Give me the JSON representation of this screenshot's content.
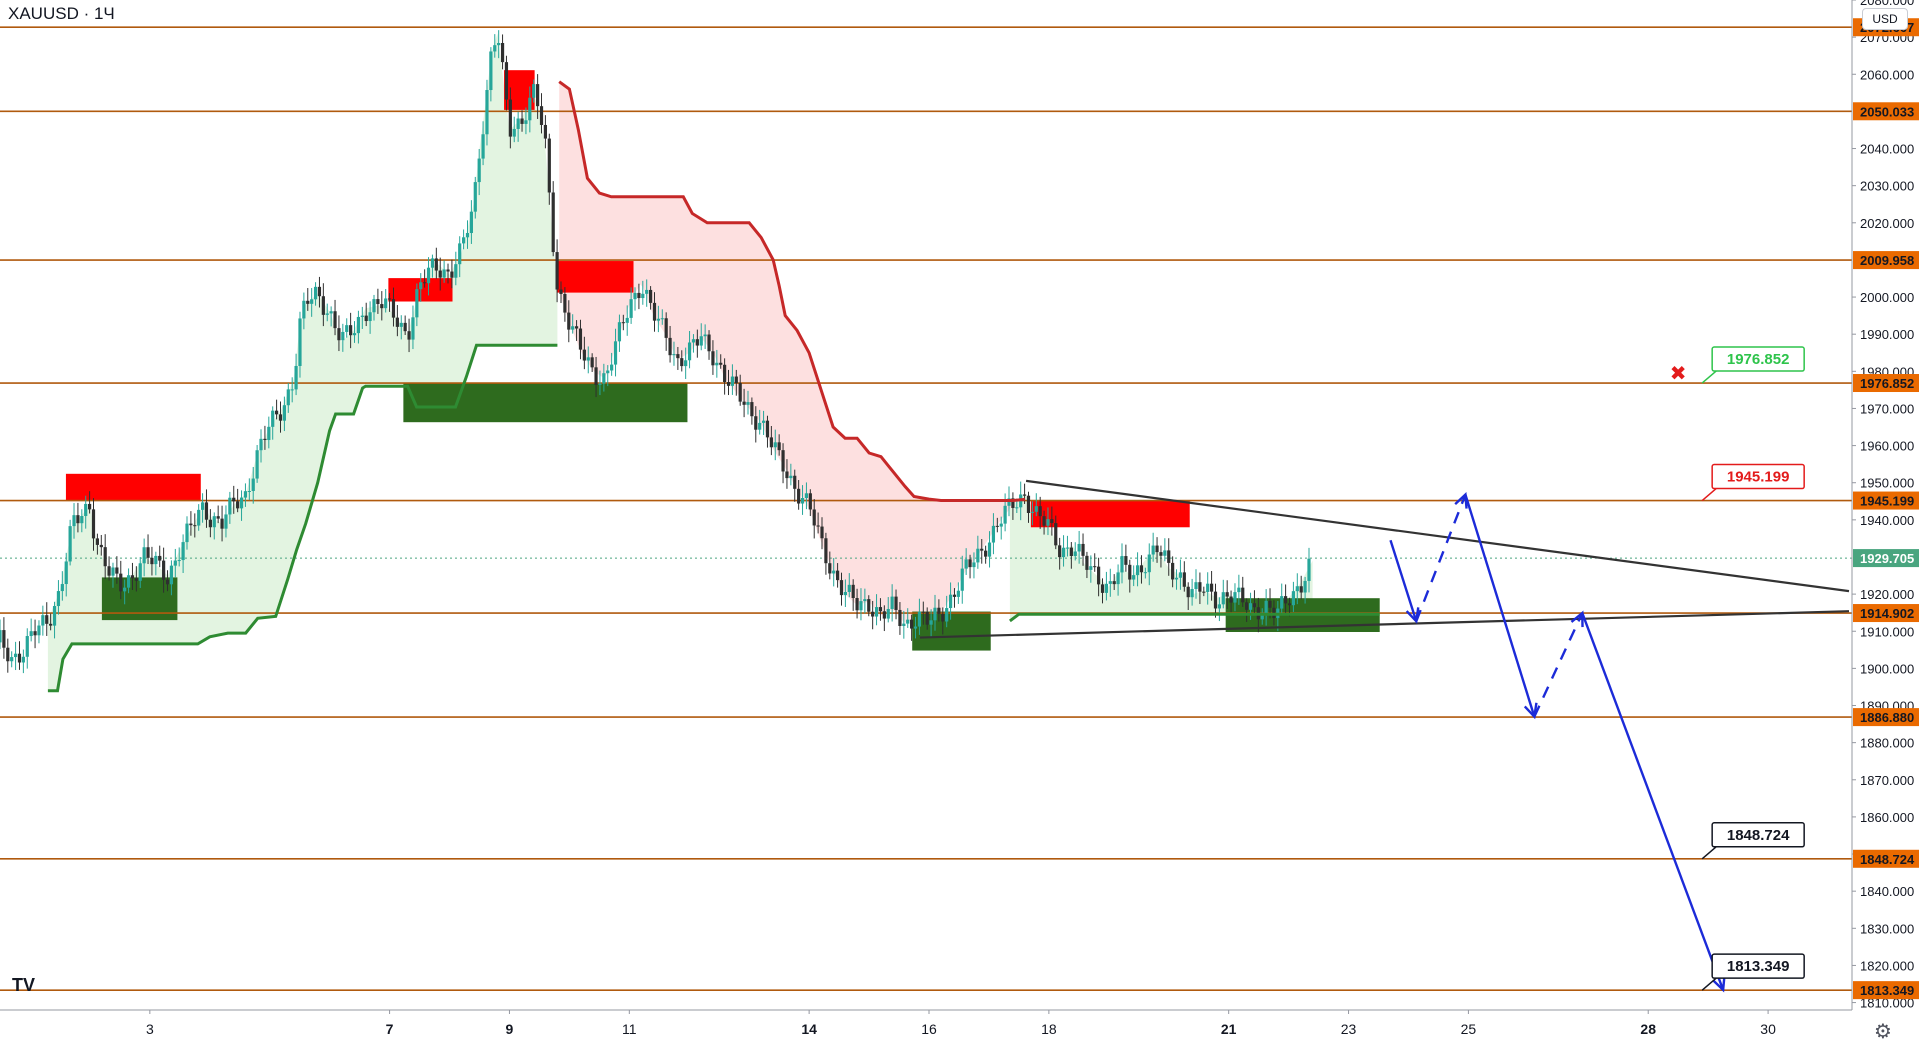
{
  "symbol_label": "XAUUSD · 1Ч",
  "currency_button": "USD",
  "logo_text": "TV",
  "settings_icon": "gear-icon",
  "colors": {
    "level_line": "#b05a0e",
    "supply_zone": "#ff0000",
    "demand_zone": "#2e6b1e",
    "trail_up": "#2e8b32",
    "trail_down": "#c62828",
    "fill_up": "#e3f4e1",
    "fill_down": "#fde0e0",
    "candle_up": "#26a69a",
    "candle_down": "#2f2f2f",
    "projection": "#1c2bd8",
    "triangle": "#333333",
    "price_tag_bg": "#ea6a00",
    "current_price_bg": "#49a57f",
    "callout_green": "#2ec44b",
    "callout_red": "#e31b1b",
    "callout_black": "#131722"
  },
  "chart_data": {
    "type": "candlestick",
    "instrument": "XAUUSD",
    "timeframe": "1Ч",
    "ylim": [
      1808,
      2080
    ],
    "y_ticks": [
      2080,
      2070,
      2060,
      2040,
      2030,
      2020,
      2000,
      1990,
      1980,
      1970,
      1960,
      1950,
      1940,
      1920,
      1910,
      1900,
      1890,
      1880,
      1870,
      1860,
      1850,
      1840,
      1830,
      1820,
      1810
    ],
    "y_tick_labels": [
      "2080.000",
      "2070.000",
      "2060.000",
      "2040.000",
      "2030.000",
      "2020.000",
      "2000.000",
      "1990.000",
      "1980.000",
      "1970.000",
      "1960.000",
      "1950.000",
      "1940.000",
      "1920.000",
      "1910.000",
      "1900.000",
      "1890.000",
      "1880.000",
      "1870.000",
      "1860.000",
      "1850.000",
      "1840.000",
      "1830.000",
      "1820.000",
      "1810.000"
    ],
    "x_range": [
      0.5,
      31.4
    ],
    "x_ticks": [
      {
        "day": 3,
        "label": "3",
        "bold": false
      },
      {
        "day": 7,
        "label": "7",
        "bold": true
      },
      {
        "day": 9,
        "label": "9",
        "bold": true
      },
      {
        "day": 11,
        "label": "11",
        "bold": false
      },
      {
        "day": 14,
        "label": "14",
        "bold": true
      },
      {
        "day": 16,
        "label": "16",
        "bold": false
      },
      {
        "day": 18,
        "label": "18",
        "bold": false
      },
      {
        "day": 21,
        "label": "21",
        "bold": true
      },
      {
        "day": 23,
        "label": "23",
        "bold": false
      },
      {
        "day": 25,
        "label": "25",
        "bold": false
      },
      {
        "day": 28,
        "label": "28",
        "bold": true
      },
      {
        "day": 30,
        "label": "30",
        "bold": false
      }
    ],
    "levels": [
      {
        "price": 2072.667,
        "label": "2072.667"
      },
      {
        "price": 2050.033,
        "label": "2050.033"
      },
      {
        "price": 2009.958,
        "label": "2009.958"
      },
      {
        "price": 1976.852,
        "label": "1976.852"
      },
      {
        "price": 1945.199,
        "label": "1945.199"
      },
      {
        "price": 1914.902,
        "label": "1914.902"
      },
      {
        "price": 1886.88,
        "label": "1886.880"
      },
      {
        "price": 1848.724,
        "label": "1848.724"
      },
      {
        "price": 1813.349,
        "label": "1813.349"
      }
    ],
    "current_price": {
      "price": 1929.705,
      "label": "1929.705"
    },
    "supply_zones": [
      {
        "x0": 1.6,
        "x1": 3.85,
        "y0": 1945.3,
        "y1": 1952.4
      },
      {
        "x0": 6.98,
        "x1": 8.05,
        "y0": 1998.8,
        "y1": 2005.1
      },
      {
        "x0": 8.91,
        "x1": 9.42,
        "y0": 2050.4,
        "y1": 2061.1
      },
      {
        "x0": 9.79,
        "x1": 11.07,
        "y0": 2001.2,
        "y1": 2009.7
      },
      {
        "x0": 17.7,
        "x1": 20.35,
        "y0": 1938.0,
        "y1": 1945.3
      }
    ],
    "demand_zones": [
      {
        "x0": 2.2,
        "x1": 3.46,
        "y0": 1913.0,
        "y1": 1924.5
      },
      {
        "x0": 7.23,
        "x1": 11.97,
        "y0": 1966.3,
        "y1": 1976.8
      },
      {
        "x0": 15.72,
        "x1": 17.03,
        "y0": 1904.8,
        "y1": 1915.3
      },
      {
        "x0": 20.95,
        "x1": 23.52,
        "y0": 1909.8,
        "y1": 1918.9
      }
    ],
    "trailing_stop_up_1": [
      [
        1.3,
        1894
      ],
      [
        1.46,
        1894
      ],
      [
        1.55,
        1902.5
      ],
      [
        1.7,
        1906.6
      ],
      [
        3.8,
        1906.6
      ],
      [
        4.0,
        1908.5
      ],
      [
        4.3,
        1909.5
      ],
      [
        4.6,
        1909.5
      ],
      [
        4.8,
        1913.5
      ],
      [
        5.1,
        1914
      ],
      [
        5.3,
        1924
      ],
      [
        5.45,
        1932
      ],
      [
        5.6,
        1939
      ],
      [
        5.8,
        1950
      ],
      [
        6.0,
        1964
      ],
      [
        6.1,
        1968.5
      ],
      [
        6.4,
        1968.5
      ],
      [
        6.55,
        1975.5
      ],
      [
        6.6,
        1976
      ],
      [
        7.3,
        1976
      ],
      [
        7.45,
        1970.4
      ],
      [
        8.1,
        1970.4
      ],
      [
        8.28,
        1978.5
      ],
      [
        8.45,
        1987
      ],
      [
        9.8,
        1987
      ]
    ],
    "trailing_stop_down": [
      [
        9.83,
        2058
      ],
      [
        10.0,
        2056
      ],
      [
        10.15,
        2045
      ],
      [
        10.3,
        2032
      ],
      [
        10.5,
        2028
      ],
      [
        10.7,
        2027
      ],
      [
        11.9,
        2027
      ],
      [
        12.05,
        2022.5
      ],
      [
        12.3,
        2020
      ],
      [
        12.5,
        2020
      ],
      [
        13.0,
        2020
      ],
      [
        13.2,
        2016
      ],
      [
        13.4,
        2010
      ],
      [
        13.5,
        2003
      ],
      [
        13.6,
        1995
      ],
      [
        13.8,
        1991
      ],
      [
        14.0,
        1985
      ],
      [
        14.2,
        1975
      ],
      [
        14.4,
        1965
      ],
      [
        14.6,
        1962
      ],
      [
        14.8,
        1962
      ],
      [
        15.0,
        1958
      ],
      [
        15.2,
        1957
      ],
      [
        15.4,
        1953
      ],
      [
        15.6,
        1949
      ],
      [
        15.75,
        1946.3
      ],
      [
        16.0,
        1945.6
      ],
      [
        16.2,
        1945.2
      ],
      [
        17.4,
        1945.2
      ],
      [
        17.6,
        1945.5
      ]
    ],
    "trailing_stop_up_2": [
      [
        17.35,
        1912.8
      ],
      [
        17.5,
        1914.6
      ],
      [
        23.52,
        1914.6
      ]
    ],
    "price_path": [
      [
        0.5,
        1907
      ],
      [
        0.7,
        1903
      ],
      [
        0.9,
        1905
      ],
      [
        1.1,
        1910
      ],
      [
        1.3,
        1913
      ],
      [
        1.5,
        1921
      ],
      [
        1.7,
        1938
      ],
      [
        1.9,
        1942
      ],
      [
        2.0,
        1944
      ],
      [
        2.1,
        1935
      ],
      [
        2.3,
        1926
      ],
      [
        2.5,
        1922
      ],
      [
        2.7,
        1925
      ],
      [
        2.9,
        1930
      ],
      [
        3.1,
        1928
      ],
      [
        3.3,
        1925
      ],
      [
        3.5,
        1932
      ],
      [
        3.7,
        1938
      ],
      [
        3.9,
        1944
      ],
      [
        4.0,
        1941
      ],
      [
        4.2,
        1939
      ],
      [
        4.4,
        1944
      ],
      [
        4.6,
        1947
      ],
      [
        4.8,
        1958
      ],
      [
        5.0,
        1965
      ],
      [
        5.2,
        1970
      ],
      [
        5.4,
        1978
      ],
      [
        5.5,
        1992
      ],
      [
        5.6,
        1998
      ],
      [
        5.8,
        2001
      ],
      [
        6.0,
        1996
      ],
      [
        6.2,
        1988
      ],
      [
        6.4,
        1991
      ],
      [
        6.6,
        1997
      ],
      [
        6.9,
        1998
      ],
      [
        7.1,
        1995
      ],
      [
        7.3,
        1990
      ],
      [
        7.5,
        2002
      ],
      [
        7.7,
        2008
      ],
      [
        7.8,
        2009
      ],
      [
        8.0,
        2006
      ],
      [
        8.2,
        2012
      ],
      [
        8.4,
        2025
      ],
      [
        8.5,
        2040
      ],
      [
        8.6,
        2052
      ],
      [
        8.7,
        2066
      ],
      [
        8.8,
        2071
      ],
      [
        8.9,
        2058
      ],
      [
        9.0,
        2045
      ],
      [
        9.2,
        2048
      ],
      [
        9.4,
        2055
      ],
      [
        9.5,
        2050
      ],
      [
        9.6,
        2040
      ],
      [
        9.7,
        2020
      ],
      [
        9.8,
        2003
      ],
      [
        10.0,
        1993
      ],
      [
        10.2,
        1985
      ],
      [
        10.4,
        1980
      ],
      [
        10.6,
        1978
      ],
      [
        10.8,
        1988
      ],
      [
        11.0,
        1998
      ],
      [
        11.2,
        2004
      ],
      [
        11.4,
        1995
      ],
      [
        11.6,
        1990
      ],
      [
        11.8,
        1983
      ],
      [
        12.0,
        1985
      ],
      [
        12.2,
        1989
      ],
      [
        12.4,
        1985
      ],
      [
        12.6,
        1978
      ],
      [
        12.8,
        1974
      ],
      [
        13.0,
        1970
      ],
      [
        13.2,
        1966
      ],
      [
        13.4,
        1959
      ],
      [
        13.6,
        1954
      ],
      [
        13.8,
        1948
      ],
      [
        14.0,
        1943
      ],
      [
        14.2,
        1934
      ],
      [
        14.4,
        1926
      ],
      [
        14.6,
        1920
      ],
      [
        14.8,
        1917
      ],
      [
        15.0,
        1918
      ],
      [
        15.2,
        1914
      ],
      [
        15.4,
        1916
      ],
      [
        15.6,
        1912
      ],
      [
        15.8,
        1914
      ],
      [
        16.0,
        1912
      ],
      [
        16.2,
        1915
      ],
      [
        16.4,
        1920
      ],
      [
        16.6,
        1926
      ],
      [
        16.8,
        1930
      ],
      [
        17.0,
        1935
      ],
      [
        17.2,
        1940
      ],
      [
        17.4,
        1944
      ],
      [
        17.6,
        1947
      ],
      [
        17.8,
        1941
      ],
      [
        18.0,
        1938
      ],
      [
        18.2,
        1932
      ],
      [
        18.4,
        1933
      ],
      [
        18.6,
        1928
      ],
      [
        18.8,
        1925
      ],
      [
        19.0,
        1922
      ],
      [
        19.2,
        1927
      ],
      [
        19.4,
        1925
      ],
      [
        19.6,
        1929
      ],
      [
        19.8,
        1932
      ],
      [
        20.0,
        1927
      ],
      [
        20.2,
        1925
      ],
      [
        20.4,
        1920
      ],
      [
        20.6,
        1921
      ],
      [
        20.8,
        1919
      ],
      [
        21.0,
        1920
      ],
      [
        21.2,
        1918
      ],
      [
        21.4,
        1916
      ],
      [
        21.6,
        1917
      ],
      [
        21.8,
        1914
      ],
      [
        22.0,
        1919
      ],
      [
        22.2,
        1923
      ],
      [
        22.4,
        1929
      ]
    ],
    "triangle_lines": [
      {
        "from": [
          17.62,
          1950.5
        ],
        "to": [
          31.35,
          1920.8
        ]
      },
      {
        "from": [
          15.85,
          1908.3
        ],
        "to": [
          31.35,
          1915.4
        ]
      }
    ],
    "projection_solid": [
      [
        [
          23.7,
          1934.5
        ],
        [
          24.13,
          1912.7
        ]
      ],
      [
        [
          24.95,
          1946.8
        ],
        [
          26.1,
          1887.0
        ]
      ],
      [
        [
          26.9,
          1914.9
        ],
        [
          29.25,
          1813.4
        ]
      ]
    ],
    "projection_dashed": [
      [
        [
          24.13,
          1912.7
        ],
        [
          24.95,
          1946.8
        ]
      ],
      [
        [
          26.1,
          1887.0
        ],
        [
          26.9,
          1914.9
        ]
      ]
    ],
    "callouts": [
      {
        "label": "1976.852",
        "price": 1976.852,
        "anchor_day": 28.9,
        "style": "green"
      },
      {
        "label": "1945.199",
        "price": 1945.199,
        "anchor_day": 28.9,
        "style": "red"
      },
      {
        "label": "1848.724",
        "price": 1848.724,
        "anchor_day": 28.9,
        "style": "black"
      },
      {
        "label": "1813.349",
        "price": 1813.349,
        "anchor_day": 28.9,
        "style": "black"
      }
    ],
    "cancel_marker": {
      "day": 28.5,
      "price": 1979.5,
      "symbol": "✖"
    }
  }
}
